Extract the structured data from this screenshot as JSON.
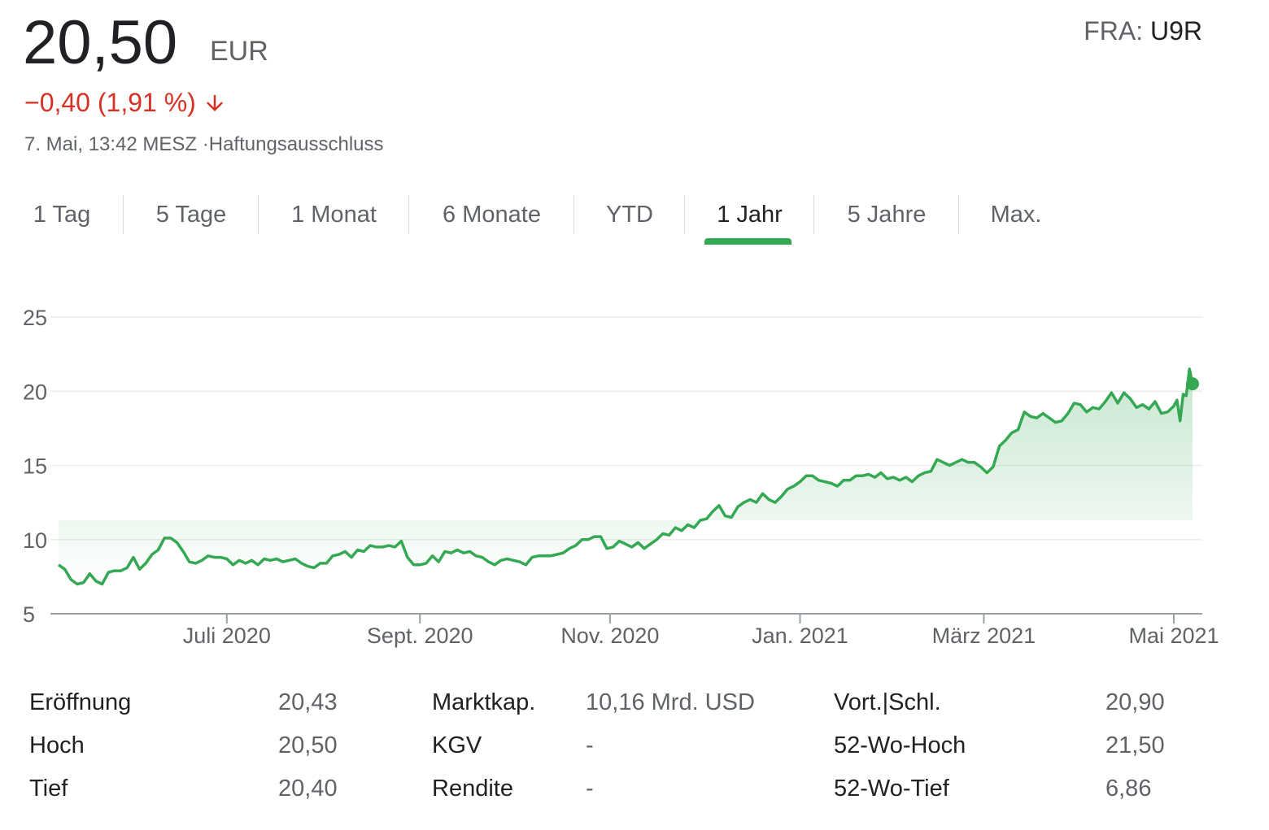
{
  "quote": {
    "price": "20,50",
    "currency": "EUR",
    "exchange_label": "FRA:",
    "ticker": "U9R",
    "change": "−0,40 (1,91 %)",
    "timestamp": "7. Mai, 13:42 MESZ ·",
    "disclaimer": "Haftungsausschluss",
    "colors": {
      "negative": "#d93025",
      "positive_line": "#34a853"
    }
  },
  "tabs": [
    {
      "label": "1 Tag",
      "active": false
    },
    {
      "label": "5 Tage",
      "active": false
    },
    {
      "label": "1 Monat",
      "active": false
    },
    {
      "label": "6 Monate",
      "active": false
    },
    {
      "label": "YTD",
      "active": false
    },
    {
      "label": "1 Jahr",
      "active": true
    },
    {
      "label": "5 Jahre",
      "active": false
    },
    {
      "label": "Max.",
      "active": false
    }
  ],
  "chart_data": {
    "type": "area",
    "title": "",
    "xlabel": "",
    "ylabel": "",
    "ylim": [
      5,
      25
    ],
    "yticks": [
      "25",
      "20",
      "15",
      "10",
      "5"
    ],
    "ytick_values": [
      25,
      20,
      15,
      10,
      5
    ],
    "xticks": [
      {
        "label": "Juli 2020",
        "date": "2020-07-01"
      },
      {
        "label": "Sept. 2020",
        "date": "2020-09-01"
      },
      {
        "label": "Nov. 2020",
        "date": "2020-11-01"
      },
      {
        "label": "Jan. 2021",
        "date": "2021-01-01"
      },
      {
        "label": "März 2021",
        "date": "2021-03-01"
      },
      {
        "label": "Mai 2021",
        "date": "2021-05-01"
      }
    ],
    "xlim": [
      "2020-05-08",
      "2021-05-07"
    ],
    "grid": true,
    "series": [
      {
        "color": "#34a853",
        "points": [
          [
            "2020-05-08",
            8.3
          ],
          [
            "2020-05-10",
            8.0
          ],
          [
            "2020-05-12",
            7.3
          ],
          [
            "2020-05-14",
            7.0
          ],
          [
            "2020-05-16",
            7.1
          ],
          [
            "2020-05-18",
            7.7
          ],
          [
            "2020-05-20",
            7.2
          ],
          [
            "2020-05-22",
            7.0
          ],
          [
            "2020-05-24",
            7.8
          ],
          [
            "2020-05-26",
            7.9
          ],
          [
            "2020-05-28",
            7.9
          ],
          [
            "2020-05-30",
            8.1
          ],
          [
            "2020-06-01",
            8.8
          ],
          [
            "2020-06-03",
            8.0
          ],
          [
            "2020-06-05",
            8.4
          ],
          [
            "2020-06-07",
            9.0
          ],
          [
            "2020-06-09",
            9.3
          ],
          [
            "2020-06-11",
            10.1
          ],
          [
            "2020-06-13",
            10.1
          ],
          [
            "2020-06-15",
            9.8
          ],
          [
            "2020-06-17",
            9.2
          ],
          [
            "2020-06-19",
            8.5
          ],
          [
            "2020-06-21",
            8.4
          ],
          [
            "2020-06-23",
            8.6
          ],
          [
            "2020-06-25",
            8.9
          ],
          [
            "2020-06-27",
            8.8
          ],
          [
            "2020-06-29",
            8.8
          ],
          [
            "2020-07-01",
            8.7
          ],
          [
            "2020-07-03",
            8.3
          ],
          [
            "2020-07-05",
            8.6
          ],
          [
            "2020-07-07",
            8.4
          ],
          [
            "2020-07-09",
            8.6
          ],
          [
            "2020-07-11",
            8.3
          ],
          [
            "2020-07-13",
            8.7
          ],
          [
            "2020-07-15",
            8.6
          ],
          [
            "2020-07-17",
            8.7
          ],
          [
            "2020-07-19",
            8.5
          ],
          [
            "2020-07-21",
            8.6
          ],
          [
            "2020-07-23",
            8.7
          ],
          [
            "2020-07-25",
            8.4
          ],
          [
            "2020-07-27",
            8.2
          ],
          [
            "2020-07-29",
            8.1
          ],
          [
            "2020-07-31",
            8.4
          ],
          [
            "2020-08-02",
            8.4
          ],
          [
            "2020-08-04",
            8.9
          ],
          [
            "2020-08-06",
            9.0
          ],
          [
            "2020-08-08",
            9.2
          ],
          [
            "2020-08-10",
            8.8
          ],
          [
            "2020-08-12",
            9.3
          ],
          [
            "2020-08-14",
            9.2
          ],
          [
            "2020-08-16",
            9.6
          ],
          [
            "2020-08-18",
            9.5
          ],
          [
            "2020-08-20",
            9.5
          ],
          [
            "2020-08-22",
            9.6
          ],
          [
            "2020-08-24",
            9.5
          ],
          [
            "2020-08-26",
            9.9
          ],
          [
            "2020-08-28",
            8.8
          ],
          [
            "2020-08-30",
            8.3
          ],
          [
            "2020-09-01",
            8.3
          ],
          [
            "2020-09-03",
            8.4
          ],
          [
            "2020-09-05",
            8.9
          ],
          [
            "2020-09-07",
            8.5
          ],
          [
            "2020-09-09",
            9.2
          ],
          [
            "2020-09-11",
            9.1
          ],
          [
            "2020-09-13",
            9.3
          ],
          [
            "2020-09-15",
            9.1
          ],
          [
            "2020-09-17",
            9.2
          ],
          [
            "2020-09-19",
            8.9
          ],
          [
            "2020-09-21",
            8.8
          ],
          [
            "2020-09-23",
            8.5
          ],
          [
            "2020-09-25",
            8.3
          ],
          [
            "2020-09-27",
            8.6
          ],
          [
            "2020-09-29",
            8.7
          ],
          [
            "2020-10-01",
            8.6
          ],
          [
            "2020-10-03",
            8.5
          ],
          [
            "2020-10-05",
            8.3
          ],
          [
            "2020-10-07",
            8.8
          ],
          [
            "2020-10-09",
            8.9
          ],
          [
            "2020-10-11",
            8.9
          ],
          [
            "2020-10-13",
            8.9
          ],
          [
            "2020-10-15",
            9.0
          ],
          [
            "2020-10-17",
            9.1
          ],
          [
            "2020-10-19",
            9.4
          ],
          [
            "2020-10-21",
            9.6
          ],
          [
            "2020-10-23",
            10.0
          ],
          [
            "2020-10-25",
            10.0
          ],
          [
            "2020-10-27",
            10.2
          ],
          [
            "2020-10-29",
            10.2
          ],
          [
            "2020-10-31",
            9.4
          ],
          [
            "2020-11-02",
            9.5
          ],
          [
            "2020-11-04",
            9.9
          ],
          [
            "2020-11-06",
            9.7
          ],
          [
            "2020-11-08",
            9.5
          ],
          [
            "2020-11-10",
            9.8
          ],
          [
            "2020-11-12",
            9.4
          ],
          [
            "2020-11-14",
            9.7
          ],
          [
            "2020-11-16",
            10.0
          ],
          [
            "2020-11-18",
            10.4
          ],
          [
            "2020-11-20",
            10.3
          ],
          [
            "2020-11-22",
            10.8
          ],
          [
            "2020-11-24",
            10.6
          ],
          [
            "2020-11-26",
            11.0
          ],
          [
            "2020-11-28",
            10.8
          ],
          [
            "2020-11-30",
            11.3
          ],
          [
            "2020-12-02",
            11.4
          ],
          [
            "2020-12-04",
            11.9
          ],
          [
            "2020-12-06",
            12.3
          ],
          [
            "2020-12-08",
            11.6
          ],
          [
            "2020-12-10",
            11.5
          ],
          [
            "2020-12-12",
            12.2
          ],
          [
            "2020-12-14",
            12.5
          ],
          [
            "2020-12-16",
            12.7
          ],
          [
            "2020-12-18",
            12.5
          ],
          [
            "2020-12-20",
            13.1
          ],
          [
            "2020-12-22",
            12.7
          ],
          [
            "2020-12-24",
            12.5
          ],
          [
            "2020-12-26",
            12.9
          ],
          [
            "2020-12-28",
            13.4
          ],
          [
            "2020-12-30",
            13.6
          ],
          [
            "2021-01-01",
            13.9
          ],
          [
            "2021-01-03",
            14.3
          ],
          [
            "2021-01-05",
            14.3
          ],
          [
            "2021-01-07",
            14.0
          ],
          [
            "2021-01-09",
            13.9
          ],
          [
            "2021-01-11",
            13.8
          ],
          [
            "2021-01-13",
            13.6
          ],
          [
            "2021-01-15",
            14.0
          ],
          [
            "2021-01-17",
            14.0
          ],
          [
            "2021-01-19",
            14.3
          ],
          [
            "2021-01-21",
            14.3
          ],
          [
            "2021-01-23",
            14.4
          ],
          [
            "2021-01-25",
            14.2
          ],
          [
            "2021-01-27",
            14.5
          ],
          [
            "2021-01-29",
            14.1
          ],
          [
            "2021-01-31",
            14.2
          ],
          [
            "2021-02-02",
            14.0
          ],
          [
            "2021-02-04",
            14.2
          ],
          [
            "2021-02-06",
            13.9
          ],
          [
            "2021-02-08",
            14.3
          ],
          [
            "2021-02-10",
            14.5
          ],
          [
            "2021-02-12",
            14.6
          ],
          [
            "2021-02-14",
            15.4
          ],
          [
            "2021-02-16",
            15.2
          ],
          [
            "2021-02-18",
            15.0
          ],
          [
            "2021-02-20",
            15.2
          ],
          [
            "2021-02-22",
            15.4
          ],
          [
            "2021-02-24",
            15.2
          ],
          [
            "2021-02-26",
            15.2
          ],
          [
            "2021-02-28",
            14.9
          ],
          [
            "2021-03-02",
            14.5
          ],
          [
            "2021-03-04",
            14.9
          ],
          [
            "2021-03-06",
            16.3
          ],
          [
            "2021-03-08",
            16.7
          ],
          [
            "2021-03-10",
            17.2
          ],
          [
            "2021-03-12",
            17.4
          ],
          [
            "2021-03-14",
            18.6
          ],
          [
            "2021-03-16",
            18.3
          ],
          [
            "2021-03-18",
            18.2
          ],
          [
            "2021-03-20",
            18.5
          ],
          [
            "2021-03-22",
            18.2
          ],
          [
            "2021-03-24",
            17.9
          ],
          [
            "2021-03-26",
            18.0
          ],
          [
            "2021-03-28",
            18.5
          ],
          [
            "2021-03-30",
            19.2
          ],
          [
            "2021-04-01",
            19.1
          ],
          [
            "2021-04-03",
            18.6
          ],
          [
            "2021-04-05",
            18.9
          ],
          [
            "2021-04-07",
            18.8
          ],
          [
            "2021-04-09",
            19.3
          ],
          [
            "2021-04-11",
            19.9
          ],
          [
            "2021-04-13",
            19.2
          ],
          [
            "2021-04-15",
            19.9
          ],
          [
            "2021-04-17",
            19.5
          ],
          [
            "2021-04-19",
            18.9
          ],
          [
            "2021-04-21",
            19.1
          ],
          [
            "2021-04-23",
            18.8
          ],
          [
            "2021-04-25",
            19.3
          ],
          [
            "2021-04-27",
            18.5
          ],
          [
            "2021-04-29",
            18.6
          ],
          [
            "2021-05-01",
            19.0
          ],
          [
            "2021-05-02",
            19.4
          ],
          [
            "2021-05-03",
            18.0
          ],
          [
            "2021-05-04",
            19.8
          ],
          [
            "2021-05-05",
            19.7
          ],
          [
            "2021-05-06",
            21.5
          ],
          [
            "2021-05-07",
            20.5
          ]
        ]
      }
    ]
  },
  "stats": [
    [
      {
        "label": "Eröffnung",
        "value": "20,43"
      },
      {
        "label": "Marktkap.",
        "value": "10,16 Mrd. USD"
      },
      {
        "label": "Vort.|Schl.",
        "value": "20,90"
      }
    ],
    [
      {
        "label": "Hoch",
        "value": "20,50"
      },
      {
        "label": "KGV",
        "value": "-"
      },
      {
        "label": "52-Wo-Hoch",
        "value": "21,50"
      }
    ],
    [
      {
        "label": "Tief",
        "value": "20,40"
      },
      {
        "label": "Rendite",
        "value": "-"
      },
      {
        "label": "52-Wo-Tief",
        "value": "6,86"
      }
    ]
  ]
}
